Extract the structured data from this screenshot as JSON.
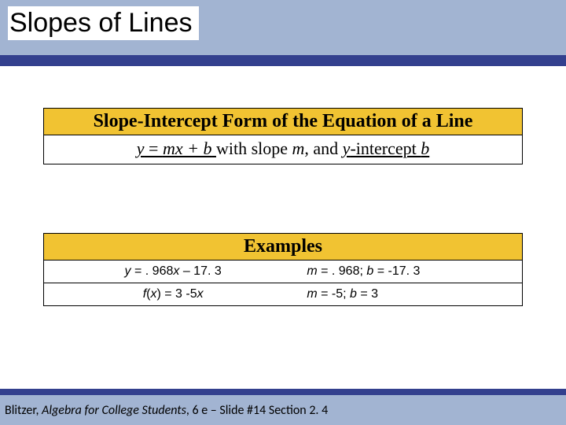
{
  "header": {
    "title": "Slopes of Lines"
  },
  "box1": {
    "heading": "Slope-Intercept Form of the Equation of a Line",
    "eq_lhs": "y",
    "eq_mid": " = ",
    "eq_rhs": "mx + b",
    "with_text": "   with slope ",
    "m": "m",
    "comma": ",",
    "and_text": " and ",
    "yint": "y",
    "intercept_text": "-intercept ",
    "b": "b"
  },
  "box2": {
    "heading": "Examples",
    "rows": [
      {
        "left_y": "y",
        "left_rest": " = . 968",
        "left_x": "x",
        "left_tail": " – 17. 3",
        "right_m": "m",
        "right_m_val": " = . 968; ",
        "right_b": "b",
        "right_b_val": " = -17. 3"
      },
      {
        "left_f": "f",
        "left_paren": "(",
        "left_x1": "x",
        "left_mid": ") = 3 -5",
        "left_x2": "x",
        "right_m": "m",
        "right_m_val": " = -5; ",
        "right_b": "b",
        "right_b_val": " = 3"
      }
    ]
  },
  "footer": {
    "author": "Blitzer, ",
    "book": "Algebra for College Students",
    "edition": ", 6 e – Slide #14 Section 2. 4"
  },
  "colors": {
    "band": "#a2b4d2",
    "bar": "#33408e",
    "gold": "#f1c332",
    "border": "#000000",
    "background": "#ffffff"
  }
}
